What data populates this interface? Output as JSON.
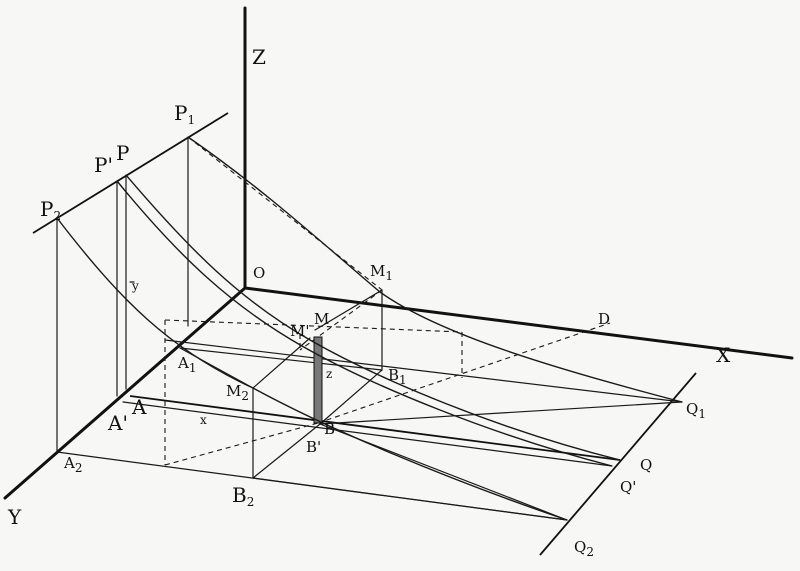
{
  "axes": {
    "x": "X",
    "y": "Y",
    "z": "Z",
    "origin": "O"
  },
  "points": {
    "P": "P",
    "P_prime": "P'",
    "P1": "P",
    "P1_sub": "1",
    "P2": "P",
    "P2_sub": "2",
    "M": "M",
    "M_prime": "M'",
    "M1": "M",
    "M1_sub": "1",
    "M2": "M",
    "M2_sub": "2",
    "A": "A",
    "A_prime": "A'",
    "A1": "A",
    "A1_sub": "1",
    "A2": "A",
    "A2_sub": "2",
    "B": "B",
    "B_prime": "B'",
    "B1": "B",
    "B1_sub": "1",
    "B2": "B",
    "B2_sub": "2",
    "Q": "Q",
    "Q_prime": "Q'",
    "Q1": "Q",
    "Q1_sub": "1",
    "Q2": "Q",
    "Q2_sub": "2",
    "D": "D"
  },
  "variables": {
    "x": "x",
    "y": "y",
    "z": "z"
  }
}
